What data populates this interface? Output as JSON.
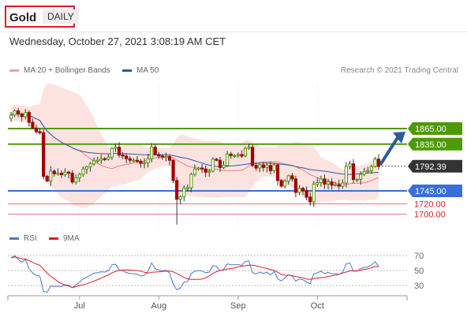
{
  "header": {
    "instrument": "Gold",
    "timeframe": "DAILY"
  },
  "datetime_text": "Wednesday, October 27, 2021 3:08:19 AM CET",
  "legend": {
    "items": [
      {
        "label": "MA 20 + Bollinger Bands",
        "color": "#f08080"
      },
      {
        "label": "MA 50",
        "color": "#2d5a9e"
      }
    ]
  },
  "source": "Research © 2021 Trading Central",
  "chart_data": [
    {
      "type": "candlestick",
      "x_dates": [
        "Jun 4",
        "Jun 7",
        "Jun 8",
        "Jun 9",
        "Jun 10",
        "Jun 11",
        "Jun 14",
        "Jun 15",
        "Jun 16",
        "Jun 17",
        "Jun 18",
        "Jun 21",
        "Jun 22",
        "Jun 23",
        "Jun 24",
        "Jun 25",
        "Jun 28",
        "Jun 29",
        "Jun 30",
        "Jul 1",
        "Jul 2",
        "Jul 5",
        "Jul 6",
        "Jul 7",
        "Jul 8",
        "Jul 9",
        "Jul 12",
        "Jul 13",
        "Jul 14",
        "Jul 15",
        "Jul 16",
        "Jul 19",
        "Jul 20",
        "Jul 21",
        "Jul 22",
        "Jul 23",
        "Jul 26",
        "Jul 27",
        "Jul 28",
        "Jul 29",
        "Jul 30",
        "Aug 2",
        "Aug 3",
        "Aug 4",
        "Aug 5",
        "Aug 6",
        "Aug 9",
        "Aug 10",
        "Aug 11",
        "Aug 12",
        "Aug 13",
        "Aug 16",
        "Aug 17",
        "Aug 18",
        "Aug 19",
        "Aug 20",
        "Aug 23",
        "Aug 24",
        "Aug 25",
        "Aug 26",
        "Aug 27",
        "Aug 30",
        "Aug 31",
        "Sep 1",
        "Sep 2",
        "Sep 3",
        "Sep 6",
        "Sep 7",
        "Sep 8",
        "Sep 9",
        "Sep 10",
        "Sep 13",
        "Sep 14",
        "Sep 15",
        "Sep 16",
        "Sep 17",
        "Sep 20",
        "Sep 21",
        "Sep 22",
        "Sep 23",
        "Sep 24",
        "Sep 27",
        "Sep 28",
        "Sep 29",
        "Sep 30",
        "Oct 1",
        "Oct 4",
        "Oct 5",
        "Oct 6",
        "Oct 7",
        "Oct 8",
        "Oct 11",
        "Oct 12",
        "Oct 13",
        "Oct 14",
        "Oct 15",
        "Oct 18",
        "Oct 19",
        "Oct 20",
        "Oct 21",
        "Oct 22",
        "Oct 25",
        "Oct 26"
      ],
      "close": [
        1891,
        1899,
        1893,
        1888,
        1896,
        1877,
        1866,
        1859,
        1857,
        1773,
        1764,
        1783,
        1778,
        1779,
        1776,
        1781,
        1779,
        1762,
        1770,
        1777,
        1787,
        1791,
        1797,
        1803,
        1804,
        1807,
        1806,
        1810,
        1827,
        1829,
        1814,
        1812,
        1807,
        1804,
        1804,
        1802,
        1798,
        1799,
        1807,
        1829,
        1815,
        1812,
        1810,
        1811,
        1804,
        1765,
        1729,
        1734,
        1750,
        1751,
        1777,
        1787,
        1789,
        1787,
        1781,
        1783,
        1806,
        1804,
        1790,
        1794,
        1816,
        1813,
        1813,
        1815,
        1812,
        1827,
        1829,
        1794,
        1789,
        1795,
        1790,
        1794,
        1784,
        1795,
        1765,
        1754,
        1764,
        1774,
        1768,
        1742,
        1750,
        1746,
        1733,
        1724,
        1758,
        1761,
        1768,
        1758,
        1762,
        1756,
        1757,
        1754,
        1760,
        1792,
        1797,
        1767,
        1767,
        1777,
        1782,
        1784,
        1792,
        1806,
        1792
      ],
      "price_axis_labels": [
        {
          "value": 1865.0,
          "label": "1865.00",
          "type": "resistance",
          "color": "#4e9a06"
        },
        {
          "value": 1835.0,
          "label": "1835.00",
          "type": "resistance",
          "color": "#4e9a06"
        },
        {
          "value": 1792.39,
          "label": "1792.39",
          "type": "last",
          "color": "#333333"
        },
        {
          "value": 1745.0,
          "label": "1745.00",
          "type": "pivot",
          "color": "#3a6fd8"
        },
        {
          "value": 1720.0,
          "label": "1720.00",
          "type": "support",
          "color": "#e01b24"
        },
        {
          "value": 1700.0,
          "label": "1700.00",
          "type": "support",
          "color": "#e01b24"
        }
      ],
      "x_tick_labels": [
        "Jul",
        "Aug",
        "Sep",
        "Oct"
      ],
      "overlays": [
        "MA 20 + Bollinger Bands",
        "MA 50"
      ],
      "arrow": {
        "from": 1792,
        "to": 1865,
        "direction": "up"
      }
    },
    {
      "type": "line",
      "series": [
        {
          "name": "RSI",
          "color": "#4a78c8"
        },
        {
          "name": "9MA",
          "color": "#e01b24"
        }
      ],
      "y_ticks": [
        70,
        50,
        30
      ]
    }
  ]
}
